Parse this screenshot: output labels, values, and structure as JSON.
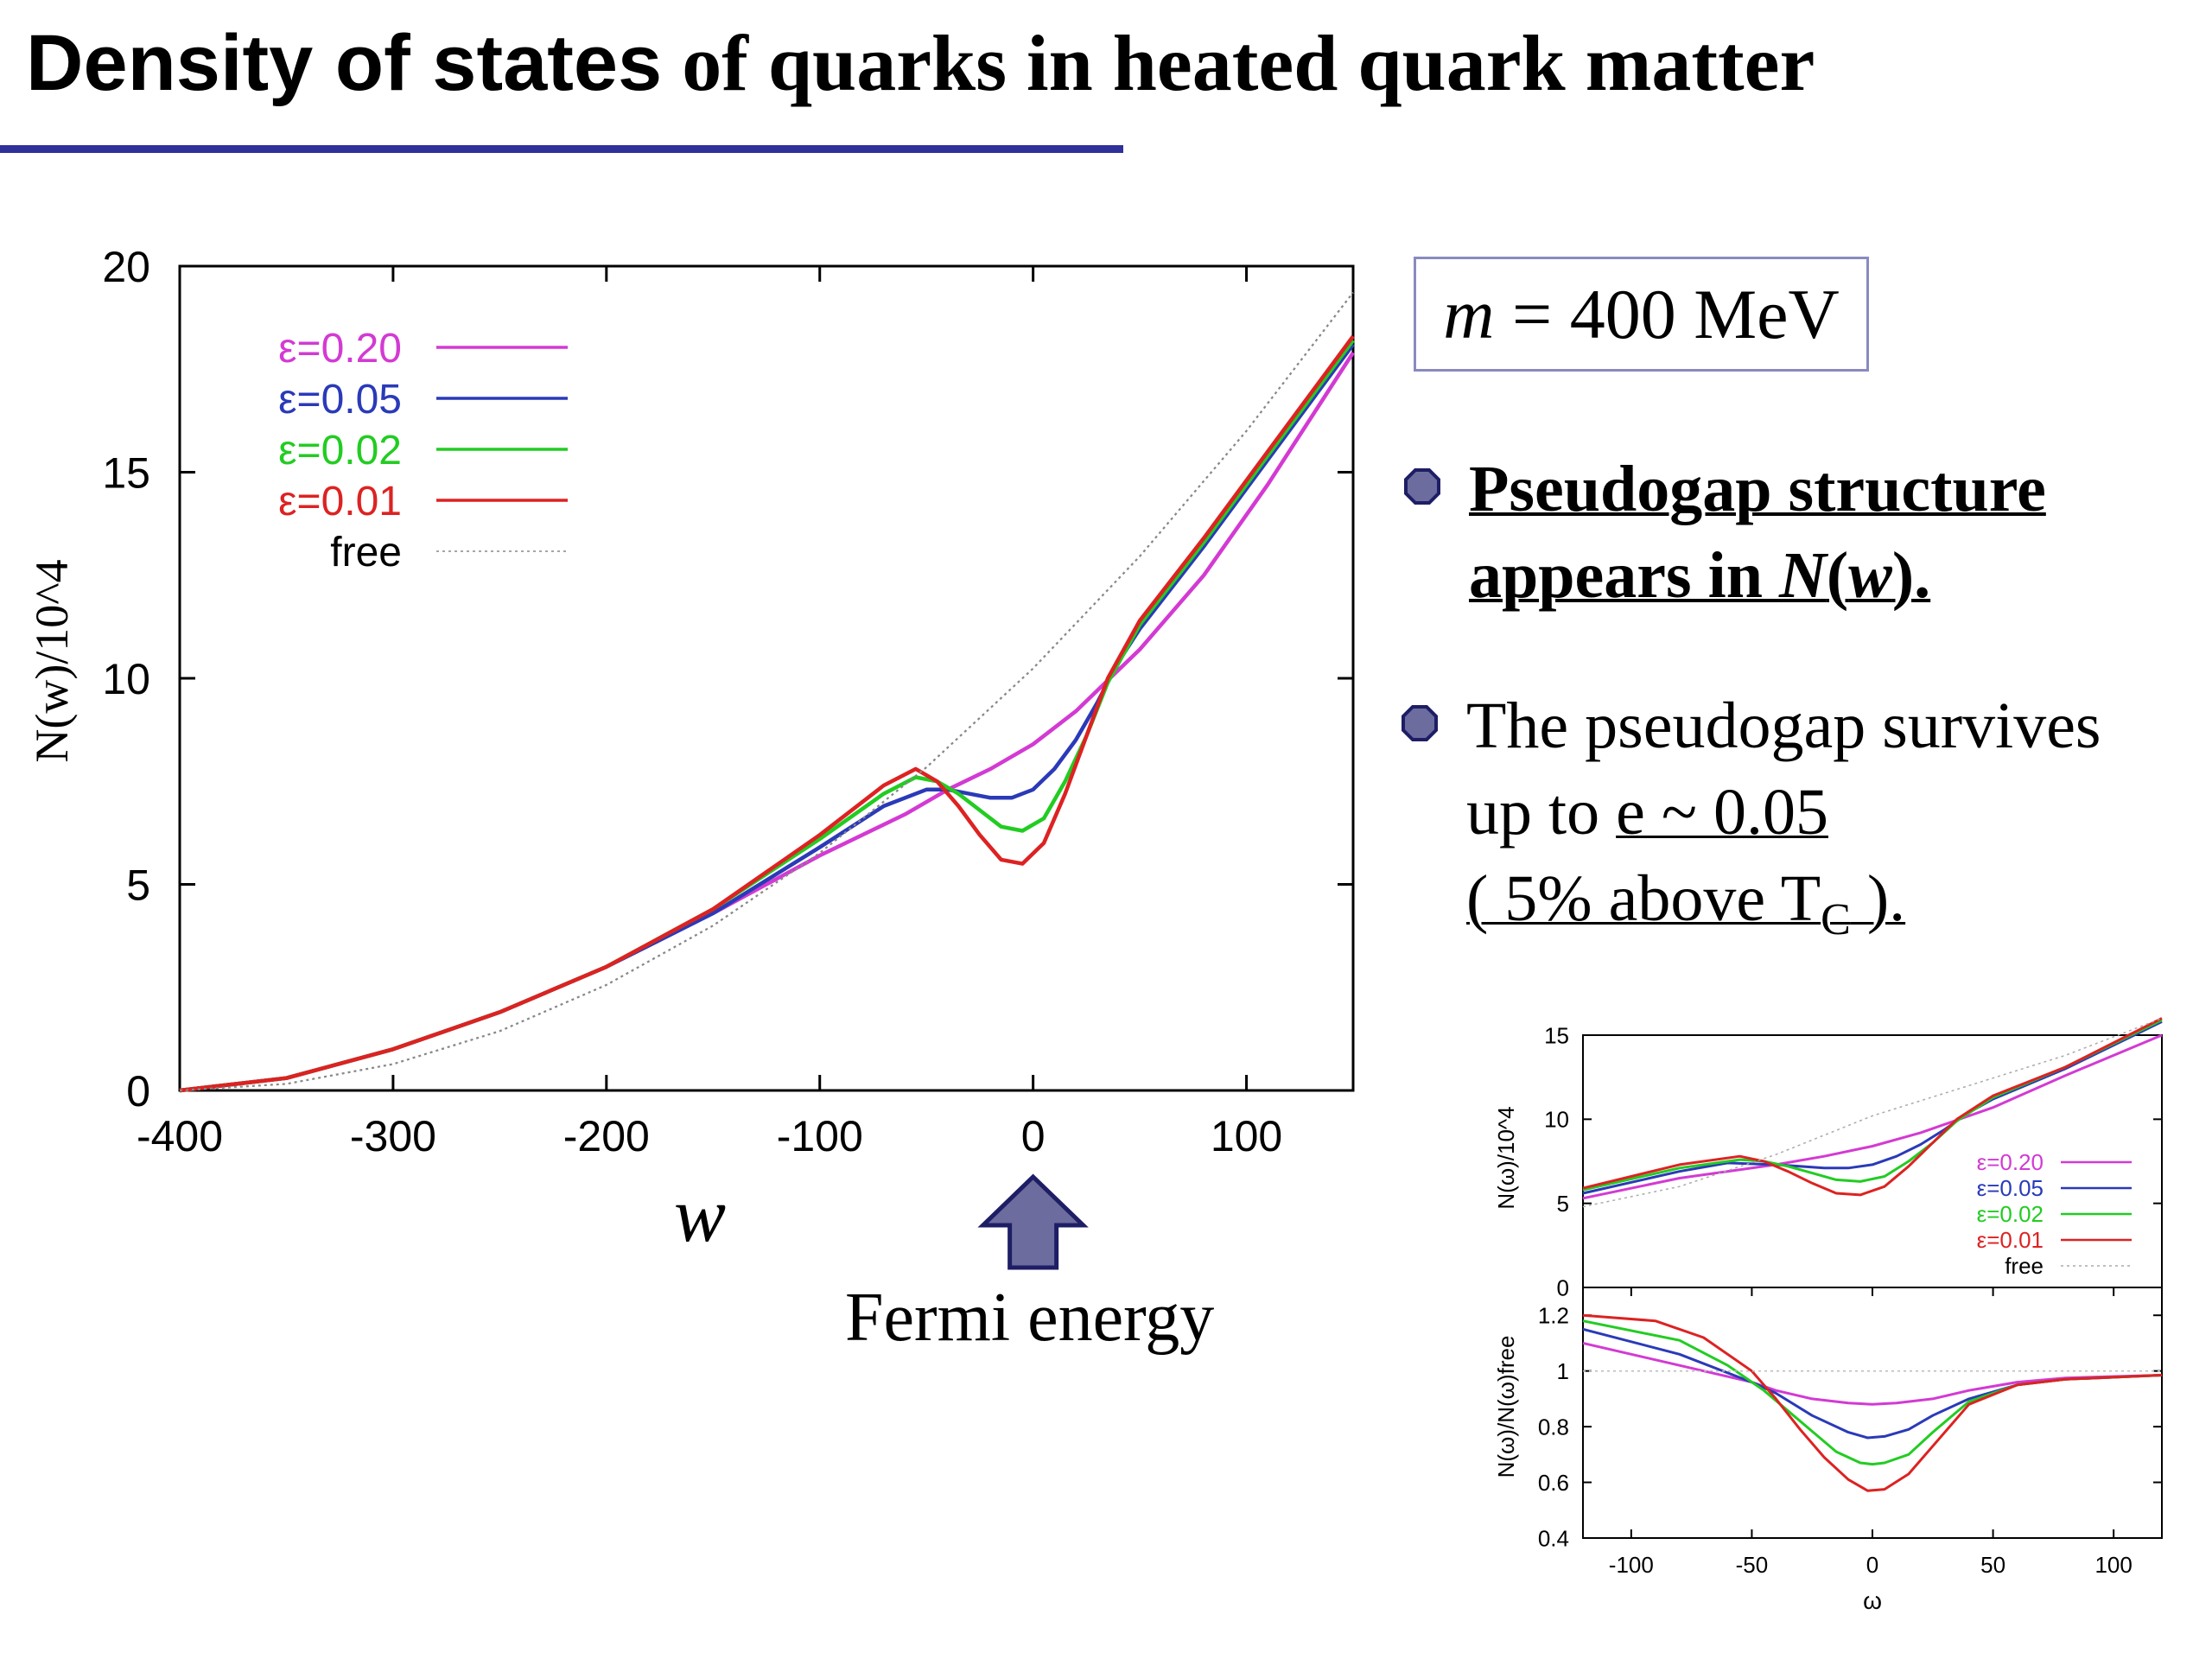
{
  "slide": {
    "title_sans": "Density of states",
    "title_serif": " of quarks in heated quark matter",
    "param_label_m": "m",
    "param_text": " = 400 MeV",
    "bullet1_line1": "Pseudogap structure",
    "bullet1_line2_pre": "appears in ",
    "bullet1_line2_N": "N",
    "bullet1_line2_paren1": "(",
    "bullet1_line2_w": "w",
    "bullet1_line2_paren2": ").",
    "bullet2_line1": "The pseudogap survives",
    "bullet2_line2_pre": "up to ",
    "bullet2_line2_val": "e ~ 0.05",
    "bullet2_line3_a": "( 5% above T",
    "bullet2_line3_sub": "C",
    "bullet2_line3_b": " ).",
    "fermi_label": "Fermi energy",
    "accent_color": "#30309a",
    "bullet_color": "#6c6c9e"
  },
  "chart_data": [
    {
      "type": "line",
      "xlabel": "w",
      "ylabel": "N(w)/10^4",
      "xlim": [
        -400,
        150
      ],
      "ylim": [
        0,
        20
      ],
      "xticks": [
        -400,
        -300,
        -200,
        -100,
        0,
        100
      ],
      "yticks": [
        0,
        5,
        10,
        15,
        20
      ],
      "legend_position": "top-left",
      "series": [
        {
          "name": "ε=0.20",
          "color": "#d33ad3",
          "x": [
            -400,
            -350,
            -300,
            -250,
            -200,
            -150,
            -100,
            -60,
            -40,
            -20,
            0,
            20,
            50,
            80,
            110,
            150
          ],
          "y": [
            0,
            0.3,
            1.0,
            1.9,
            3.0,
            4.3,
            5.7,
            6.7,
            7.3,
            7.8,
            8.4,
            9.2,
            10.7,
            12.5,
            14.7,
            17.9
          ]
        },
        {
          "name": "ε=0.05",
          "color": "#2a3ab8",
          "x": [
            -400,
            -350,
            -300,
            -250,
            -200,
            -150,
            -100,
            -70,
            -50,
            -40,
            -30,
            -20,
            -10,
            0,
            10,
            20,
            30,
            40,
            50,
            80,
            110,
            150
          ],
          "y": [
            0,
            0.3,
            1.0,
            1.9,
            3.0,
            4.3,
            5.9,
            6.9,
            7.3,
            7.3,
            7.2,
            7.1,
            7.1,
            7.3,
            7.8,
            8.5,
            9.4,
            10.4,
            11.2,
            13.2,
            15.3,
            18.1
          ]
        },
        {
          "name": "ε=0.02",
          "color": "#22cc22",
          "x": [
            -400,
            -350,
            -300,
            -250,
            -200,
            -150,
            -100,
            -70,
            -55,
            -45,
            -35,
            -25,
            -15,
            -5,
            5,
            15,
            25,
            35,
            50,
            80,
            110,
            150
          ],
          "y": [
            0,
            0.3,
            1.0,
            1.9,
            3.0,
            4.4,
            6.1,
            7.2,
            7.6,
            7.5,
            7.2,
            6.8,
            6.4,
            6.3,
            6.6,
            7.5,
            8.6,
            9.9,
            11.3,
            13.3,
            15.4,
            18.2
          ]
        },
        {
          "name": "ε=0.01",
          "color": "#dd2222",
          "x": [
            -400,
            -350,
            -300,
            -250,
            -200,
            -150,
            -100,
            -70,
            -55,
            -45,
            -35,
            -25,
            -15,
            -5,
            5,
            15,
            25,
            35,
            50,
            80,
            110,
            150
          ],
          "y": [
            0,
            0.3,
            1.0,
            1.9,
            3.0,
            4.4,
            6.2,
            7.4,
            7.8,
            7.5,
            6.9,
            6.2,
            5.6,
            5.5,
            6.0,
            7.2,
            8.6,
            10.0,
            11.4,
            13.4,
            15.5,
            18.3
          ]
        },
        {
          "name": "free",
          "color": "#888888",
          "dashed": true,
          "x": [
            -400,
            -350,
            -300,
            -250,
            -200,
            -150,
            -100,
            -50,
            0,
            50,
            100,
            150
          ],
          "y": [
            0,
            0.16,
            0.64,
            1.44,
            2.56,
            4.0,
            5.76,
            7.84,
            10.24,
            12.96,
            16.0,
            19.36
          ]
        }
      ]
    },
    {
      "type": "line",
      "xlabel": "",
      "ylabel": "N(ω)/10^4",
      "xlim": [
        -120,
        120
      ],
      "ylim": [
        0,
        15
      ],
      "yticks": [
        0,
        5,
        10,
        15
      ],
      "legend_position": "right",
      "series": [
        {
          "name": "ε=0.20",
          "color": "#d33ad3",
          "x": [
            -120,
            -80,
            -40,
            -20,
            0,
            20,
            50,
            80,
            120
          ],
          "y": [
            5.3,
            6.5,
            7.3,
            7.8,
            8.4,
            9.2,
            10.7,
            12.6,
            15.0
          ]
        },
        {
          "name": "ε=0.05",
          "color": "#2a3ab8",
          "x": [
            -120,
            -80,
            -60,
            -40,
            -20,
            -10,
            0,
            10,
            20,
            30,
            40,
            50,
            80,
            120
          ],
          "y": [
            5.6,
            6.9,
            7.4,
            7.3,
            7.1,
            7.1,
            7.3,
            7.8,
            8.5,
            9.4,
            10.4,
            11.2,
            13.0,
            15.8
          ]
        },
        {
          "name": "ε=0.02",
          "color": "#22cc22",
          "x": [
            -120,
            -80,
            -55,
            -45,
            -35,
            -25,
            -15,
            -5,
            5,
            15,
            25,
            35,
            50,
            80,
            120
          ],
          "y": [
            5.8,
            7.1,
            7.6,
            7.5,
            7.2,
            6.8,
            6.4,
            6.3,
            6.6,
            7.5,
            8.6,
            9.9,
            11.3,
            13.1,
            15.9
          ]
        },
        {
          "name": "ε=0.01",
          "color": "#dd2222",
          "x": [
            -120,
            -80,
            -55,
            -45,
            -35,
            -25,
            -15,
            -5,
            5,
            15,
            25,
            35,
            50,
            80,
            120
          ],
          "y": [
            5.9,
            7.3,
            7.8,
            7.5,
            6.9,
            6.2,
            5.6,
            5.5,
            6.0,
            7.2,
            8.6,
            10.0,
            11.4,
            13.1,
            16.0
          ]
        },
        {
          "name": "free",
          "color": "#aaaaaa",
          "dashed": true,
          "x": [
            -120,
            -80,
            -40,
            0,
            40,
            80,
            120
          ],
          "y": [
            4.8,
            6.0,
            7.9,
            10.2,
            12.0,
            13.8,
            16.0
          ]
        }
      ]
    },
    {
      "type": "line",
      "xlabel": "ω",
      "ylabel": "N(ω)/N(ω)free",
      "xlim": [
        -120,
        120
      ],
      "ylim": [
        0.4,
        1.3
      ],
      "xticks": [
        -100,
        -50,
        0,
        50,
        100
      ],
      "yticks": [
        0.4,
        0.6,
        0.8,
        1,
        1.2
      ],
      "series": [
        {
          "name": "ε=0.20",
          "color": "#d33ad3",
          "x": [
            -120,
            -80,
            -50,
            -40,
            -25,
            -10,
            0,
            10,
            25,
            40,
            60,
            80,
            120
          ],
          "y": [
            1.1,
            1.02,
            0.96,
            0.93,
            0.9,
            0.885,
            0.88,
            0.885,
            0.9,
            0.93,
            0.96,
            0.975,
            0.985
          ]
        },
        {
          "name": "ε=0.05",
          "color": "#2a3ab8",
          "x": [
            -120,
            -80,
            -50,
            -40,
            -25,
            -10,
            -2,
            5,
            15,
            25,
            40,
            60,
            80,
            120
          ],
          "y": [
            1.15,
            1.06,
            0.96,
            0.92,
            0.84,
            0.78,
            0.76,
            0.765,
            0.79,
            0.84,
            0.9,
            0.95,
            0.97,
            0.985
          ]
        },
        {
          "name": "ε=0.02",
          "color": "#22cc22",
          "x": [
            -120,
            -80,
            -60,
            -45,
            -30,
            -15,
            -5,
            0,
            5,
            15,
            25,
            40,
            60,
            80,
            120
          ],
          "y": [
            1.18,
            1.11,
            1.02,
            0.93,
            0.82,
            0.71,
            0.67,
            0.665,
            0.67,
            0.7,
            0.78,
            0.89,
            0.95,
            0.97,
            0.985
          ]
        },
        {
          "name": "ε=0.01",
          "color": "#dd2222",
          "x": [
            -120,
            -90,
            -70,
            -50,
            -40,
            -30,
            -20,
            -10,
            -2,
            5,
            15,
            25,
            40,
            60,
            80,
            120
          ],
          "y": [
            1.2,
            1.18,
            1.12,
            1.0,
            0.9,
            0.79,
            0.69,
            0.61,
            0.57,
            0.575,
            0.63,
            0.73,
            0.88,
            0.95,
            0.97,
            0.985
          ]
        },
        {
          "name": "free",
          "color": "#bbbbbb",
          "dashed": true,
          "x": [
            -120,
            120
          ],
          "y": [
            1,
            1
          ]
        }
      ]
    }
  ]
}
